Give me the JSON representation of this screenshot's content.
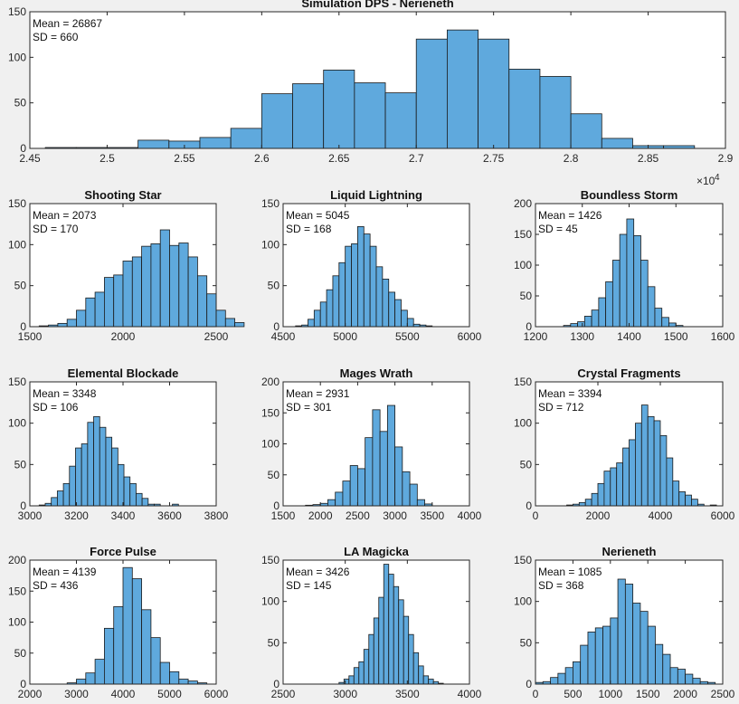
{
  "figure": {
    "background": "#f0f0f0",
    "bar_color": "#5fa9dd",
    "edge_color": "#1a1a1a"
  },
  "chart_data": [
    {
      "type": "bar",
      "subtype": "histogram",
      "title": "Simulation DPS - Nerieneth",
      "annotation": [
        "Mean = 26867",
        "SD = 660"
      ],
      "xlim": [
        24500,
        29000
      ],
      "ylim": [
        0,
        150
      ],
      "xticks": [
        24500,
        25000,
        25500,
        26000,
        26500,
        27000,
        27500,
        28000,
        28500,
        29000
      ],
      "xtick_labels": [
        "2.45",
        "2.5",
        "2.55",
        "2.6",
        "2.65",
        "2.7",
        "2.75",
        "2.8",
        "2.85",
        "2.9"
      ],
      "yticks": [
        0,
        50,
        100,
        150
      ],
      "exponent_label": "×10",
      "exponent_power": "4",
      "bin_start": 24600,
      "bin_width": 200,
      "counts": [
        1,
        1,
        1,
        9,
        8,
        12,
        22,
        60,
        71,
        86,
        72,
        61,
        120,
        130,
        120,
        87,
        79,
        38,
        11,
        3,
        3
      ]
    },
    {
      "type": "bar",
      "subtype": "histogram",
      "title": "Shooting Star",
      "annotation": [
        "Mean = 2073",
        "SD = 170"
      ],
      "xlim": [
        1500,
        2500
      ],
      "ylim": [
        0,
        150
      ],
      "xticks": [
        1500,
        2000,
        2500
      ],
      "yticks": [
        0,
        50,
        100,
        150
      ],
      "bin_start": 1550,
      "bin_width": 50,
      "counts": [
        1,
        2,
        4,
        9,
        20,
        35,
        42,
        60,
        63,
        80,
        85,
        98,
        101,
        118,
        99,
        102,
        85,
        62,
        40,
        20,
        10,
        5
      ]
    },
    {
      "type": "bar",
      "subtype": "histogram",
      "title": "Liquid Lightning",
      "annotation": [
        "Mean = 5045",
        "SD = 168"
      ],
      "xlim": [
        4500,
        6000
      ],
      "ylim": [
        0,
        150
      ],
      "xticks": [
        4500,
        5000,
        5500,
        6000
      ],
      "yticks": [
        0,
        50,
        100,
        150
      ],
      "bin_start": 4600,
      "bin_width": 50,
      "counts": [
        1,
        2,
        9,
        20,
        30,
        45,
        62,
        78,
        98,
        101,
        122,
        113,
        98,
        73,
        58,
        42,
        33,
        20,
        10,
        3,
        2,
        1
      ]
    },
    {
      "type": "bar",
      "subtype": "histogram",
      "title": "Boundless Storm",
      "annotation": [
        "Mean = 1426",
        "SD = 45"
      ],
      "xlim": [
        1200,
        1600
      ],
      "ylim": [
        0,
        200
      ],
      "xticks": [
        1200,
        1300,
        1400,
        1500,
        1600
      ],
      "yticks": [
        0,
        50,
        100,
        150,
        200
      ],
      "bin_start": 1260,
      "bin_width": 15,
      "counts": [
        2,
        5,
        8,
        17,
        27,
        47,
        73,
        108,
        150,
        175,
        148,
        108,
        65,
        30,
        15,
        6,
        2
      ]
    },
    {
      "type": "bar",
      "subtype": "histogram",
      "title": "Elemental Blockade",
      "annotation": [
        "Mean = 3348",
        "SD = 106"
      ],
      "xlim": [
        3000,
        3800
      ],
      "ylim": [
        0,
        150
      ],
      "xticks": [
        3000,
        3200,
        3400,
        3600,
        3800
      ],
      "yticks": [
        0,
        50,
        100,
        150
      ],
      "bin_start": 3040,
      "bin_width": 26,
      "counts": [
        1,
        3,
        10,
        18,
        27,
        48,
        70,
        75,
        101,
        108,
        95,
        83,
        70,
        50,
        35,
        27,
        15,
        9,
        2,
        2,
        0,
        0,
        2
      ]
    },
    {
      "type": "bar",
      "subtype": "histogram",
      "title": "Mages Wrath",
      "annotation": [
        "Mean = 2931",
        "SD = 301"
      ],
      "xlim": [
        1500,
        4000
      ],
      "ylim": [
        0,
        200
      ],
      "xticks": [
        1500,
        2000,
        2500,
        3000,
        3500,
        4000
      ],
      "yticks": [
        0,
        50,
        100,
        150,
        200
      ],
      "bin_start": 1800,
      "bin_width": 100,
      "counts": [
        1,
        2,
        4,
        10,
        22,
        40,
        65,
        60,
        110,
        155,
        120,
        162,
        95,
        55,
        35,
        10,
        3
      ]
    },
    {
      "type": "bar",
      "subtype": "histogram",
      "title": "Crystal Fragments",
      "annotation": [
        "Mean = 3394",
        "SD = 712"
      ],
      "xlim": [
        0,
        6000
      ],
      "ylim": [
        0,
        150
      ],
      "xticks": [
        0,
        2000,
        4000,
        6000
      ],
      "yticks": [
        0,
        50,
        100,
        150
      ],
      "bin_start": 1000,
      "bin_width": 200,
      "counts": [
        1,
        2,
        4,
        8,
        15,
        27,
        42,
        46,
        52,
        70,
        80,
        100,
        122,
        108,
        103,
        85,
        58,
        30,
        17,
        13,
        8,
        2,
        0,
        1
      ]
    },
    {
      "type": "bar",
      "subtype": "histogram",
      "title": "Force Pulse",
      "annotation": [
        "Mean = 4139",
        "SD = 436"
      ],
      "xlim": [
        2000,
        6000
      ],
      "ylim": [
        0,
        200
      ],
      "xticks": [
        2000,
        3000,
        4000,
        5000,
        6000
      ],
      "yticks": [
        0,
        50,
        100,
        150,
        200
      ],
      "bin_start": 2800,
      "bin_width": 200,
      "counts": [
        2,
        8,
        18,
        40,
        90,
        125,
        188,
        170,
        120,
        75,
        35,
        20,
        8,
        5,
        2
      ]
    },
    {
      "type": "bar",
      "subtype": "histogram",
      "title": "LA Magicka",
      "annotation": [
        "Mean = 3426",
        "SD = 145"
      ],
      "xlim": [
        2500,
        4000
      ],
      "ylim": [
        0,
        150
      ],
      "xticks": [
        2500,
        3000,
        3500,
        4000
      ],
      "yticks": [
        0,
        50,
        100,
        150
      ],
      "bin_start": 2950,
      "bin_width": 40,
      "counts": [
        2,
        6,
        10,
        20,
        27,
        42,
        60,
        80,
        105,
        145,
        133,
        118,
        102,
        82,
        60,
        38,
        22,
        10,
        6,
        3,
        1
      ]
    },
    {
      "type": "bar",
      "subtype": "histogram",
      "title": "Nerieneth",
      "annotation": [
        "Mean = 1085",
        "SD = 368"
      ],
      "xlim": [
        0,
        2500
      ],
      "ylim": [
        0,
        150
      ],
      "xticks": [
        0,
        500,
        1000,
        1500,
        2000,
        2500
      ],
      "yticks": [
        0,
        50,
        100,
        150
      ],
      "bin_start": 0,
      "bin_width": 100,
      "counts": [
        2,
        3,
        8,
        13,
        20,
        27,
        47,
        63,
        68,
        70,
        80,
        127,
        121,
        98,
        88,
        70,
        48,
        36,
        20,
        18,
        12,
        7,
        3,
        2
      ]
    }
  ]
}
